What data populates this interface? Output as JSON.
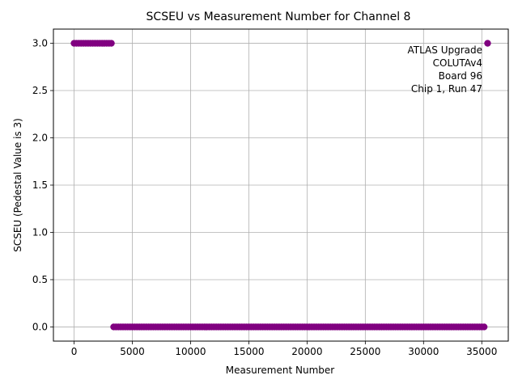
{
  "chart_data": {
    "type": "scatter",
    "title": "SCSEU vs Measurement Number for Channel 8",
    "xlabel": "Measurement Number",
    "ylabel": "SCSEU (Pedestal Value is 3)",
    "xlim": [
      -1775,
      37275
    ],
    "ylim": [
      -0.15,
      3.15
    ],
    "xticks": [
      0,
      5000,
      10000,
      15000,
      20000,
      25000,
      30000,
      35000
    ],
    "xtick_labels": [
      "0",
      "5000",
      "10000",
      "15000",
      "20000",
      "25000",
      "30000",
      "35000"
    ],
    "yticks": [
      0.0,
      0.5,
      1.0,
      1.5,
      2.0,
      2.5,
      3.0
    ],
    "ytick_labels": [
      "0.0",
      "0.5",
      "1.0",
      "1.5",
      "2.0",
      "2.5",
      "3.0"
    ],
    "grid": true,
    "marker_color": "#800080",
    "annotation": [
      "ATLAS Upgrade",
      "COLUTAv4",
      "Board 96",
      "Chip 1, Run 47"
    ],
    "annotation_placement": "top-right",
    "segments": [
      {
        "y": 3,
        "x_start": 0,
        "x_end": 3200,
        "step": 200
      },
      {
        "y": 0,
        "x_start": 3400,
        "x_end": 35200,
        "step": 200
      },
      {
        "y": 3,
        "x_start": 35500,
        "x_end": 35500,
        "step": 200
      }
    ]
  }
}
